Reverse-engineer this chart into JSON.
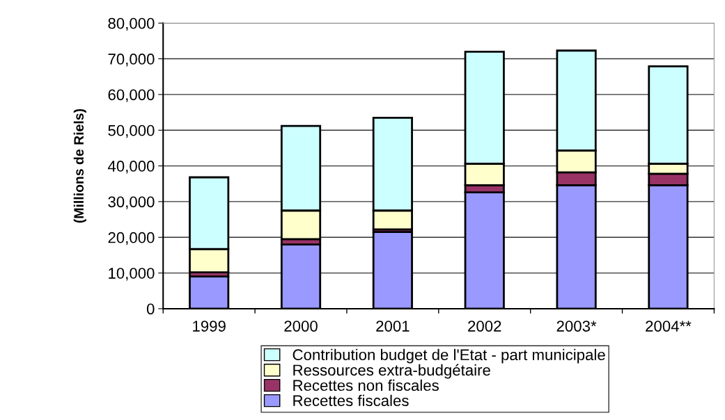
{
  "chart_data": {
    "type": "bar",
    "stacked": true,
    "ylabel": "(Millions de Riels)",
    "categories": [
      "1999",
      "2000",
      "2001",
      "2002",
      "2003*",
      "2004**"
    ],
    "series": [
      {
        "name": "Recettes fiscales",
        "color": "#9999ff",
        "values": [
          9000,
          18000,
          21500,
          32600,
          34600,
          34600
        ]
      },
      {
        "name": "Recettes non fiscales",
        "color": "#993366",
        "values": [
          1200,
          1500,
          700,
          2000,
          3600,
          3200
        ]
      },
      {
        "name": "Ressources extra-budgétaire",
        "color": "#ffffcc",
        "values": [
          6500,
          8000,
          5300,
          6000,
          6100,
          2800
        ]
      },
      {
        "name": "Contribution budget de l'Etat - part municipale",
        "color": "#ccffff",
        "values": [
          20100,
          23700,
          26000,
          31400,
          28000,
          27300
        ]
      }
    ],
    "ylim": [
      0,
      80000
    ],
    "yticks": [
      {
        "value": 0,
        "label": "0"
      },
      {
        "value": 10000,
        "label": "10,000"
      },
      {
        "value": 20000,
        "label": "20,000"
      },
      {
        "value": 30000,
        "label": "30,000"
      },
      {
        "value": 40000,
        "label": "40,000"
      },
      {
        "value": 50000,
        "label": "50,000"
      },
      {
        "value": 60000,
        "label": "60,000"
      },
      {
        "value": 70000,
        "label": "70,000"
      },
      {
        "value": 80000,
        "label": "80,000"
      }
    ],
    "grid": "y",
    "legend": "bottom"
  }
}
